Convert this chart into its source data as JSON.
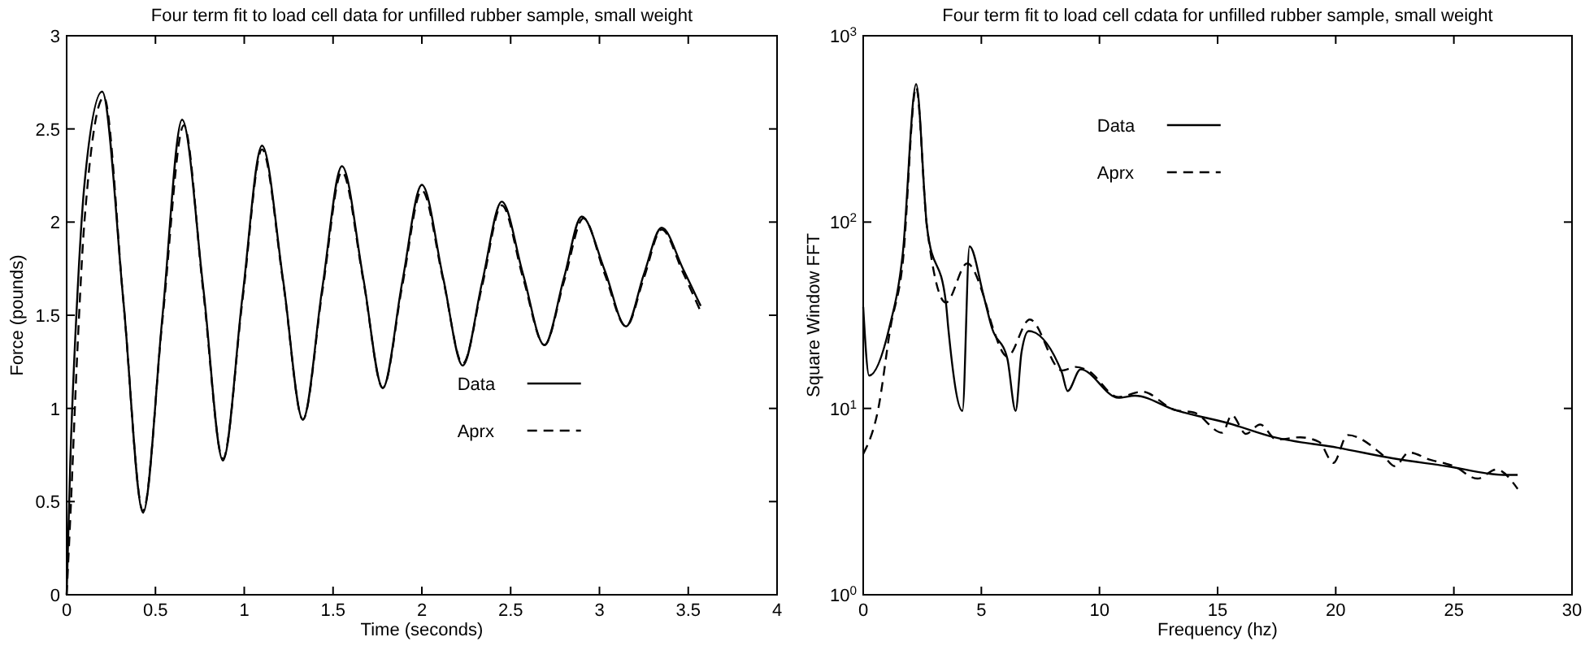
{
  "chart_data": [
    {
      "type": "line",
      "title": "Four term fit to load cell data for unfilled rubber sample, small weight",
      "xlabel": "Time (seconds)",
      "ylabel": "Force (pounds)",
      "xlim": [
        0,
        4
      ],
      "xticks": [
        0,
        0.5,
        1,
        1.5,
        2,
        2.5,
        3,
        3.5,
        4
      ],
      "ylim": [
        0,
        3
      ],
      "yticks": [
        0,
        0.5,
        1,
        1.5,
        2,
        2.5,
        3
      ],
      "grid": false,
      "legend": "bottom",
      "series": [
        {
          "name": "Data",
          "color": "#000000",
          "line_style": "solid",
          "x": [
            0,
            0.02,
            0.06,
            0.1,
            0.2,
            0.32,
            0.43,
            0.54,
            0.65,
            0.77,
            0.88,
            0.99,
            1.1,
            1.22,
            1.33,
            1.44,
            1.55,
            1.67,
            1.78,
            1.89,
            2.0,
            2.12,
            2.23,
            2.34,
            2.45,
            2.57,
            2.69,
            2.8,
            2.9,
            3.03,
            3.15,
            3.25,
            3.35,
            3.47,
            3.57
          ],
          "values": [
            0,
            0.7,
            1.6,
            2.2,
            2.7,
            1.57,
            0.44,
            1.5,
            2.55,
            1.64,
            0.72,
            1.6,
            2.41,
            1.68,
            0.94,
            1.65,
            2.3,
            1.7,
            1.11,
            1.68,
            2.2,
            1.7,
            1.23,
            1.68,
            2.11,
            1.72,
            1.34,
            1.7,
            2.03,
            1.74,
            1.44,
            1.72,
            1.97,
            1.75,
            1.55
          ]
        },
        {
          "name": "Aprx",
          "color": "#000000",
          "line_style": "dashed",
          "x": [
            0,
            0.02,
            0.06,
            0.1,
            0.21,
            0.32,
            0.43,
            0.54,
            0.66,
            0.77,
            0.88,
            0.99,
            1.1,
            1.22,
            1.33,
            1.44,
            1.55,
            1.67,
            1.78,
            1.89,
            2.0,
            2.12,
            2.23,
            2.34,
            2.45,
            2.57,
            2.69,
            2.8,
            2.91,
            3.03,
            3.15,
            3.25,
            3.35,
            3.47,
            3.57
          ],
          "values": [
            0,
            0.4,
            1.3,
            2.0,
            2.67,
            1.57,
            0.45,
            1.48,
            2.52,
            1.62,
            0.73,
            1.58,
            2.39,
            1.67,
            0.94,
            1.63,
            2.27,
            1.69,
            1.11,
            1.66,
            2.17,
            1.69,
            1.24,
            1.66,
            2.09,
            1.7,
            1.34,
            1.68,
            2.02,
            1.72,
            1.44,
            1.7,
            1.96,
            1.73,
            1.52
          ]
        }
      ]
    },
    {
      "type": "line",
      "title": "Four term fit to load cell cdata for unfilled rubber sample, small weight",
      "xlabel": "Frequency (hz)",
      "ylabel": "Square Window FFT",
      "xlim": [
        0,
        30
      ],
      "xticks": [
        0,
        5,
        10,
        15,
        20,
        25,
        30
      ],
      "ylim": [
        1,
        1000
      ],
      "log": "y",
      "yticks": [
        {
          "value": 1,
          "label": "10$^{0}$"
        },
        {
          "value": 10,
          "label": "10$^{1}$"
        },
        {
          "value": 100,
          "label": "10$^{2}$"
        },
        {
          "value": 1000,
          "label": "10$^{3}$"
        }
      ],
      "grid": false,
      "legend": "top",
      "series": [
        {
          "name": "Data",
          "color": "#000000",
          "line_style": "solid",
          "x": [
            0,
            0.25,
            1.1,
            1.67,
            2.24,
            2.7,
            3.5,
            3.6,
            4.2,
            4.5,
            5.1,
            5.45,
            6.1,
            6.45,
            6.7,
            7.0,
            8.4,
            8.65,
            9.2,
            10.8,
            11.5,
            13.2,
            15.5,
            17.4,
            20.1,
            22.4,
            24.7,
            27.1,
            27.7
          ],
          "values": [
            35,
            15,
            27,
            67,
            550,
            94,
            37,
            27,
            9.7,
            74,
            40,
            27,
            18.5,
            9.7,
            20,
            26,
            15.7,
            12.4,
            16.2,
            11.4,
            11.7,
            9.8,
            8.3,
            7,
            6.15,
            5.4,
            4.9,
            4.4,
            4.4
          ]
        },
        {
          "name": "Aprx",
          "color": "#000000",
          "line_style": "dashed",
          "x": [
            0,
            0.64,
            1.15,
            1.67,
            2.24,
            2.7,
            3.5,
            4.4,
            5.1,
            5.45,
            6.1,
            7.05,
            8.4,
            9.0,
            9.5,
            10.8,
            11.8,
            13.2,
            14.0,
            15.2,
            15.6,
            16.2,
            16.8,
            17.5,
            18.5,
            19.3,
            19.9,
            20.5,
            22.0,
            22.5,
            23.1,
            24.0,
            25.0,
            26.0,
            26.8,
            27.7
          ],
          "values": [
            5.7,
            10,
            27,
            60,
            530,
            94,
            37,
            60,
            40,
            28,
            19,
            30,
            16,
            16.7,
            16,
            11.5,
            12.3,
            9.8,
            9.5,
            7.4,
            9.2,
            7.3,
            8.2,
            6.8,
            7,
            6.6,
            5.1,
            7.2,
            5.6,
            4.9,
            5.8,
            5.3,
            4.9,
            4.2,
            4.7,
            3.7
          ]
        }
      ]
    }
  ]
}
